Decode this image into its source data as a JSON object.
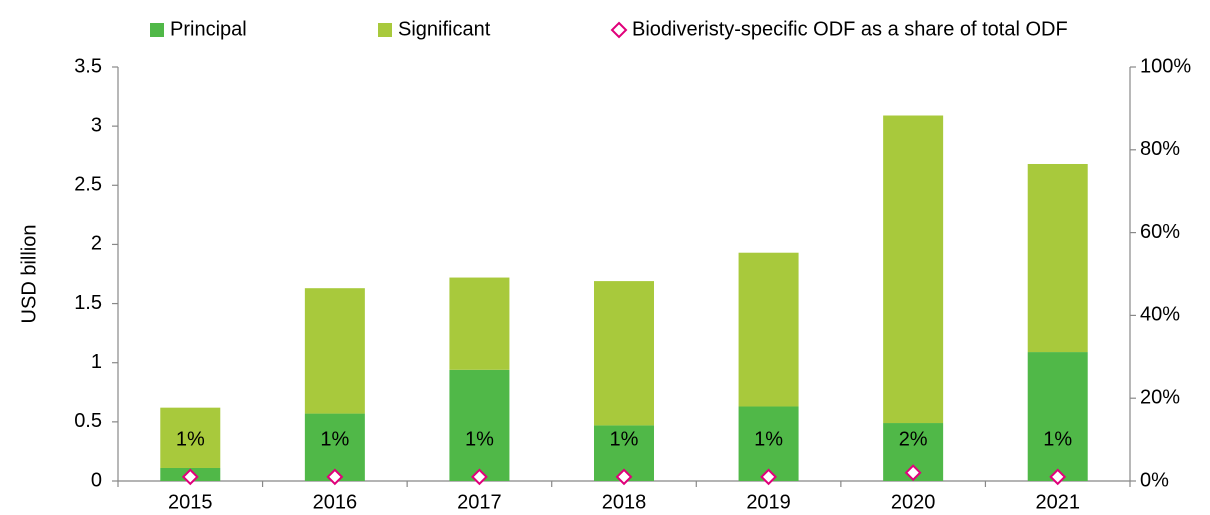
{
  "chart_data": {
    "type": "bar",
    "stacked": true,
    "y_label": "USD billion",
    "categories": [
      "2015",
      "2016",
      "2017",
      "2018",
      "2019",
      "2020",
      "2021"
    ],
    "series": [
      {
        "name": "Principal",
        "color": "#50b848",
        "values": [
          0.11,
          0.57,
          0.94,
          0.47,
          0.63,
          0.49,
          1.09
        ]
      },
      {
        "name": "Significant",
        "color": "#a8c93c",
        "values": [
          0.51,
          1.06,
          0.78,
          1.22,
          1.3,
          2.6,
          1.59
        ]
      },
      {
        "name": "Biodiveristy-specific ODF as a share of total ODF",
        "type": "scatter",
        "axis": "y2",
        "color": "#e0007a",
        "values": [
          1,
          1,
          1,
          1,
          1,
          2,
          1
        ],
        "value_labels": [
          "1%",
          "1%",
          "1%",
          "1%",
          "1%",
          "2%",
          "1%"
        ]
      }
    ],
    "ylim": [
      0,
      3.5
    ],
    "yticks": [
      0,
      0.5,
      1,
      1.5,
      2,
      2.5,
      3,
      3.5
    ],
    "y2lim": [
      0,
      100
    ],
    "y2ticks": [
      {
        "value": 0,
        "label": "0%"
      },
      {
        "value": 20,
        "label": "20%"
      },
      {
        "value": 40,
        "label": "40%"
      },
      {
        "value": 60,
        "label": "60%"
      },
      {
        "value": 80,
        "label": "80%"
      },
      {
        "value": 100,
        "label": "100%"
      }
    ]
  }
}
